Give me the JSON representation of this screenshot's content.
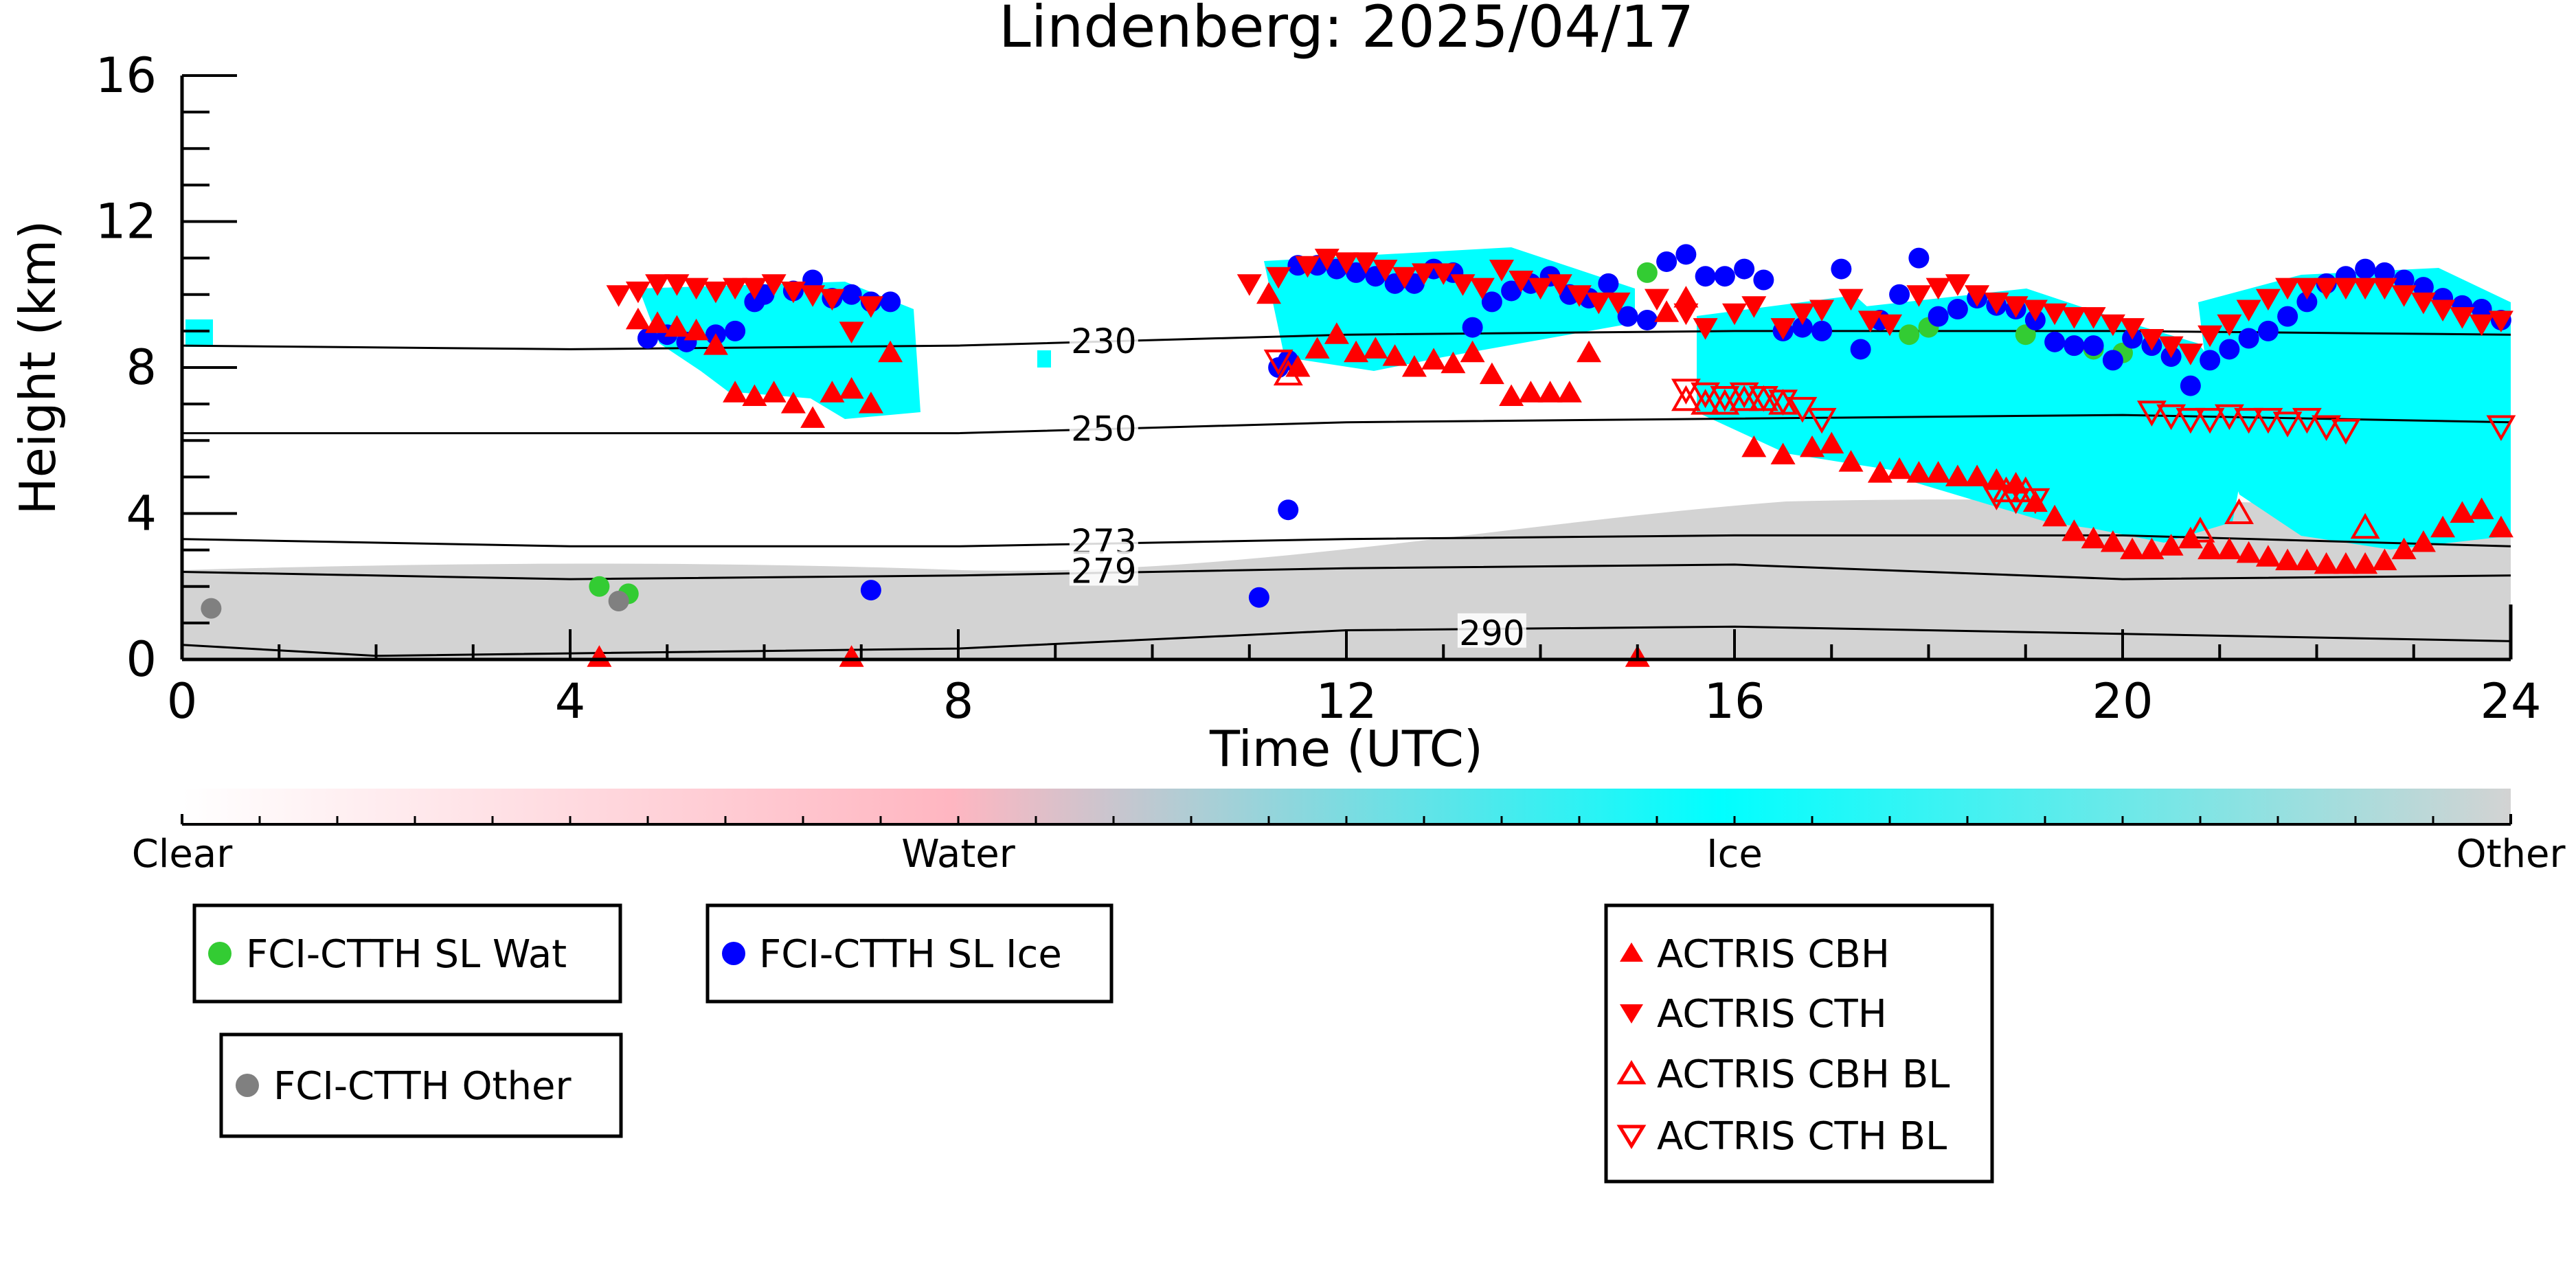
{
  "chart_data": {
    "type": "scatter",
    "title": "Lindenberg: 2025/04/17",
    "xlabel": "Time (UTC)",
    "ylabel": "Height (km)",
    "xlim": [
      0,
      24
    ],
    "ylim": [
      0,
      16
    ],
    "x_ticks": [
      "0",
      "4",
      "8",
      "12",
      "16",
      "20",
      "24"
    ],
    "y_ticks": [
      "0",
      "4",
      "8",
      "12",
      "16"
    ],
    "colorbar": {
      "labels": [
        "Clear",
        "Water",
        "Ice",
        "Other"
      ],
      "colors": [
        "#ffffff",
        "#ffb6c1",
        "#00ffff",
        "#d3d3d3"
      ]
    },
    "isotherms": [
      {
        "label": "230",
        "points": [
          [
            0,
            8.6
          ],
          [
            4,
            8.5
          ],
          [
            8,
            8.6
          ],
          [
            12,
            8.9
          ],
          [
            16,
            9.0
          ],
          [
            20,
            9.0
          ],
          [
            24,
            8.9
          ]
        ],
        "label_at": [
          9.5,
          8.7
        ]
      },
      {
        "label": "250",
        "points": [
          [
            0,
            6.2
          ],
          [
            4,
            6.2
          ],
          [
            8,
            6.2
          ],
          [
            12,
            6.5
          ],
          [
            16,
            6.6
          ],
          [
            20,
            6.7
          ],
          [
            24,
            6.5
          ]
        ],
        "label_at": [
          9.5,
          6.3
        ]
      },
      {
        "label": "273",
        "points": [
          [
            0,
            3.3
          ],
          [
            4,
            3.1
          ],
          [
            8,
            3.1
          ],
          [
            12,
            3.3
          ],
          [
            16,
            3.4
          ],
          [
            20,
            3.4
          ],
          [
            24,
            3.1
          ]
        ],
        "label_at": [
          9.5,
          3.2
        ]
      },
      {
        "label": "279",
        "points": [
          [
            0,
            2.4
          ],
          [
            4,
            2.2
          ],
          [
            8,
            2.3
          ],
          [
            12,
            2.5
          ],
          [
            16,
            2.6
          ],
          [
            20,
            2.2
          ],
          [
            24,
            2.3
          ]
        ],
        "label_at": [
          9.5,
          2.4
        ]
      },
      {
        "label": "290",
        "points": [
          [
            0,
            0.4
          ],
          [
            2,
            0.1
          ],
          [
            8,
            0.3
          ],
          [
            12,
            0.8
          ],
          [
            16,
            0.9
          ],
          [
            20,
            0.7
          ],
          [
            24,
            0.5
          ]
        ],
        "label_at": [
          13.5,
          0.7
        ]
      }
    ],
    "series": [
      {
        "name": "FCI-CTTH SL Wat",
        "marker": "circle",
        "color": "#33cc33",
        "x": [
          4.3,
          4.6,
          15.1,
          17.8,
          18.0,
          19.0,
          19.5,
          19.7,
          20.0
        ],
        "y": [
          2.0,
          1.8,
          10.6,
          8.9,
          9.1,
          8.9,
          8.6,
          8.5,
          8.4
        ]
      },
      {
        "name": "FCI-CTTH SL Ice",
        "marker": "circle",
        "color": "#0000ff",
        "x": [
          4.8,
          5.0,
          5.2,
          5.5,
          5.7,
          5.9,
          6.0,
          6.3,
          6.5,
          6.7,
          6.9,
          7.1,
          7.3,
          7.1,
          11.3,
          11.4,
          11.5,
          11.7,
          11.9,
          12.1,
          12.3,
          12.5,
          12.7,
          12.9,
          13.1,
          13.3,
          13.5,
          13.7,
          13.9,
          14.1,
          14.3,
          14.5,
          14.7,
          14.9,
          15.1,
          15.3,
          15.5,
          15.7,
          15.9,
          16.1,
          16.3,
          16.5,
          16.7,
          16.9,
          17.1,
          17.3,
          17.5,
          17.7,
          17.9,
          18.1,
          18.3,
          18.5,
          18.7,
          18.9,
          19.1,
          19.3,
          19.5,
          19.7,
          19.9,
          20.1,
          20.3,
          20.5,
          20.7,
          20.9,
          21.1,
          21.3,
          21.5,
          21.7,
          21.9,
          22.1,
          22.3,
          22.5,
          22.7,
          22.9,
          23.1,
          23.3,
          23.5,
          23.7,
          23.9,
          11.1,
          11.4
        ],
        "y": [
          8.8,
          8.9,
          8.7,
          8.9,
          9.0,
          9.8,
          10.0,
          10.1,
          10.4,
          9.9,
          10.0,
          9.8,
          9.8,
          1.9,
          8.0,
          8.2,
          10.8,
          10.8,
          10.7,
          10.6,
          10.5,
          10.3,
          10.3,
          10.7,
          10.6,
          9.1,
          9.8,
          10.1,
          10.3,
          10.5,
          10.0,
          9.9,
          10.3,
          9.4,
          9.3,
          10.9,
          11.1,
          10.5,
          10.5,
          10.7,
          10.4,
          9.0,
          9.1,
          9.0,
          10.7,
          8.5,
          9.3,
          10.0,
          11.0,
          9.4,
          9.6,
          9.9,
          9.7,
          9.6,
          9.3,
          8.7,
          8.6,
          8.6,
          8.2,
          8.8,
          8.6,
          8.3,
          7.5,
          8.2,
          8.5,
          8.8,
          9.0,
          9.4,
          9.8,
          10.3,
          10.5,
          10.7,
          10.6,
          10.4,
          10.2,
          9.9,
          9.7,
          9.6,
          9.3,
          1.7,
          4.1
        ]
      },
      {
        "name": "FCI-CTTH Other",
        "marker": "circle",
        "color": "#808080",
        "x": [
          0.3,
          4.5
        ],
        "y": [
          1.4,
          1.6
        ]
      },
      {
        "name": "ACTRIS CBH",
        "marker": "triangle-up",
        "color": "#ff0000",
        "x": [
          4.7,
          4.9,
          5.1,
          5.3,
          5.5,
          5.7,
          5.9,
          6.1,
          6.3,
          6.5,
          6.7,
          6.9,
          7.1,
          7.3,
          11.2,
          11.5,
          11.7,
          11.9,
          12.1,
          12.3,
          12.5,
          12.7,
          12.9,
          13.1,
          13.3,
          13.5,
          13.7,
          13.9,
          14.1,
          14.3,
          14.5,
          15.3,
          15.5,
          16.2,
          16.5,
          16.8,
          17.0,
          17.2,
          17.5,
          17.7,
          17.9,
          18.1,
          18.3,
          18.5,
          18.7,
          18.9,
          19.1,
          19.3,
          19.5,
          19.7,
          19.9,
          20.1,
          20.3,
          20.5,
          20.7,
          20.9,
          21.1,
          21.3,
          21.5,
          21.7,
          21.9,
          22.1,
          22.3,
          22.5,
          22.7,
          22.9,
          23.1,
          23.3,
          23.5,
          23.7,
          23.9,
          4.3,
          6.9,
          15.0
        ],
        "y": [
          9.3,
          9.2,
          9.1,
          9.0,
          8.6,
          7.3,
          7.2,
          7.3,
          7.0,
          6.6,
          7.3,
          7.4,
          7.0,
          8.4,
          10.0,
          8.0,
          8.5,
          8.9,
          8.4,
          8.5,
          8.3,
          8.0,
          8.2,
          8.1,
          8.4,
          7.8,
          7.2,
          7.3,
          7.3,
          7.3,
          8.4,
          9.5,
          9.9,
          5.8,
          5.6,
          5.8,
          5.9,
          5.4,
          5.1,
          5.2,
          5.1,
          5.1,
          5.0,
          5.0,
          4.9,
          4.8,
          4.3,
          3.9,
          3.5,
          3.3,
          3.2,
          3.0,
          3.0,
          3.1,
          3.3,
          3.0,
          3.0,
          2.9,
          2.8,
          2.7,
          2.7,
          2.6,
          2.6,
          2.6,
          2.7,
          3.0,
          3.2,
          3.6,
          4.0,
          4.1,
          3.6,
          0.05,
          0.05,
          0.05
        ]
      },
      {
        "name": "ACTRIS CTH",
        "marker": "triangle-down",
        "color": "#ff0000",
        "x": [
          4.5,
          4.7,
          4.9,
          5.1,
          5.3,
          5.5,
          5.7,
          5.9,
          6.1,
          6.3,
          6.5,
          6.7,
          6.9,
          7.1,
          11.0,
          11.3,
          11.6,
          11.8,
          12.0,
          12.2,
          12.4,
          12.6,
          12.8,
          13.0,
          13.2,
          13.4,
          13.6,
          13.8,
          14.0,
          14.2,
          14.4,
          14.6,
          14.8,
          15.2,
          15.5,
          15.7,
          16.0,
          16.2,
          16.5,
          16.7,
          16.9,
          17.2,
          17.4,
          17.6,
          17.9,
          18.1,
          18.3,
          18.5,
          18.7,
          18.9,
          19.1,
          19.3,
          19.5,
          19.7,
          19.9,
          20.1,
          20.3,
          20.5,
          20.7,
          20.9,
          21.1,
          21.3,
          21.5,
          21.7,
          21.9,
          22.1,
          22.3,
          22.5,
          22.7,
          22.9,
          23.1,
          23.3,
          23.5,
          23.7,
          23.9
        ],
        "y": [
          10.0,
          10.1,
          10.3,
          10.3,
          10.2,
          10.1,
          10.2,
          10.2,
          10.3,
          10.1,
          10.0,
          9.9,
          9.0,
          9.7,
          10.3,
          10.5,
          10.8,
          11.0,
          10.9,
          10.9,
          10.7,
          10.5,
          10.6,
          10.6,
          10.3,
          10.2,
          10.7,
          10.4,
          10.2,
          10.3,
          10.0,
          9.8,
          9.8,
          9.9,
          9.5,
          9.1,
          9.5,
          9.7,
          9.1,
          9.5,
          9.6,
          9.9,
          9.3,
          9.2,
          10.0,
          10.2,
          10.3,
          10.0,
          9.8,
          9.7,
          9.6,
          9.5,
          9.4,
          9.4,
          9.2,
          9.1,
          8.8,
          8.6,
          8.4,
          8.9,
          9.2,
          9.6,
          9.9,
          10.2,
          10.2,
          10.2,
          10.2,
          10.2,
          10.2,
          10.0,
          9.8,
          9.6,
          9.4,
          9.2,
          9.3
        ]
      },
      {
        "name": "ACTRIS CBH BL",
        "marker": "triangle-up-open",
        "color": "#ff0000",
        "x": [
          11.4,
          15.5,
          15.7,
          15.9,
          16.1,
          16.3,
          16.5,
          18.8,
          19.0,
          20.8,
          21.2,
          22.5
        ],
        "y": [
          7.8,
          7.1,
          7.0,
          7.0,
          7.1,
          7.1,
          7.0,
          4.6,
          4.6,
          3.5,
          4.0,
          3.6
        ]
      },
      {
        "name": "ACTRIS CTH BL",
        "marker": "triangle-down-open",
        "color": "#ff0000",
        "x": [
          11.3,
          15.5,
          15.7,
          15.9,
          16.1,
          16.3,
          16.5,
          16.7,
          16.9,
          18.7,
          18.9,
          19.1,
          20.3,
          20.5,
          20.7,
          20.9,
          21.1,
          21.3,
          21.5,
          21.7,
          21.9,
          22.1,
          22.3,
          23.9
        ],
        "y": [
          8.2,
          7.4,
          7.3,
          7.2,
          7.3,
          7.2,
          7.1,
          6.9,
          6.6,
          4.5,
          4.4,
          4.4,
          6.8,
          6.7,
          6.6,
          6.6,
          6.7,
          6.6,
          6.6,
          6.5,
          6.6,
          6.4,
          6.3,
          6.4
        ]
      }
    ]
  }
}
